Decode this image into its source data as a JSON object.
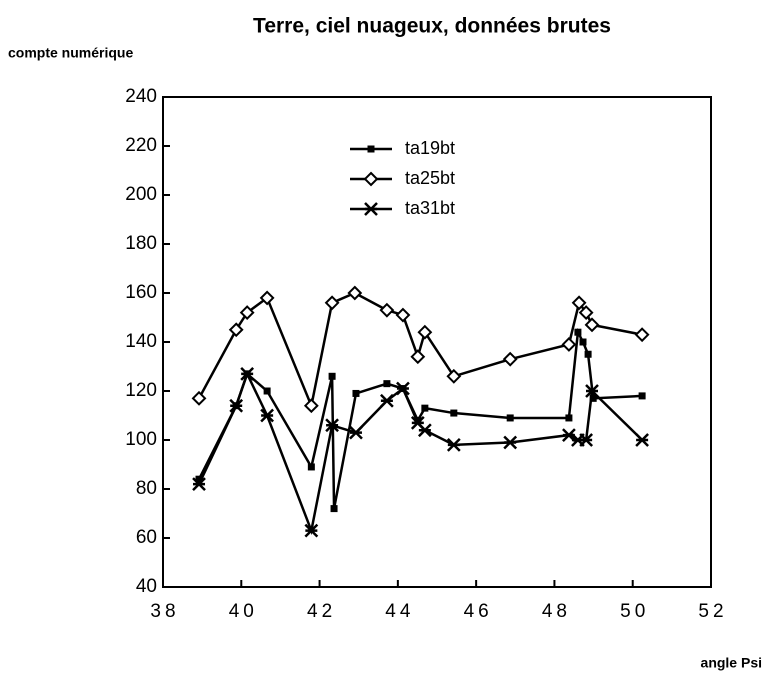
{
  "chart_data": {
    "type": "line",
    "title": "Terre, ciel nuageux, données brutes",
    "y_label": "compte numérique",
    "x_label": "angle Psi",
    "xlim": [
      38,
      52
    ],
    "xticks": [
      38,
      40,
      42,
      44,
      46,
      48,
      50,
      52
    ],
    "ylim": [
      40,
      240
    ],
    "yticks": [
      40,
      60,
      80,
      100,
      120,
      140,
      160,
      180,
      200,
      220,
      240
    ],
    "series": [
      {
        "name": "ta19bt",
        "marker": "square",
        "color": "#000000",
        "x": [
          38.92,
          39.87,
          40.15,
          40.66,
          41.79,
          42.32,
          42.37,
          42.93,
          43.72,
          44.13,
          44.51,
          44.69,
          45.43,
          46.87,
          48.37,
          48.6,
          48.73,
          48.86,
          48.99,
          50.24
        ],
        "values": [
          84,
          114,
          127,
          120,
          89,
          126,
          72,
          119,
          123,
          121,
          108,
          113,
          111,
          109,
          109,
          144,
          140,
          135,
          117,
          118
        ]
      },
      {
        "name": "ta25bt",
        "marker": "diamond",
        "color": "#000000",
        "x": [
          38.92,
          39.87,
          40.15,
          40.66,
          41.79,
          42.32,
          42.9,
          43.72,
          44.13,
          44.51,
          44.69,
          45.43,
          46.87,
          48.37,
          48.63,
          48.81,
          48.96,
          50.24
        ],
        "values": [
          117,
          145,
          152,
          158,
          114,
          156,
          160,
          153,
          151,
          134,
          144,
          126,
          133,
          139,
          156,
          152,
          147,
          143
        ]
      },
      {
        "name": "ta31bt",
        "marker": "star",
        "color": "#000000",
        "x": [
          38.92,
          39.87,
          40.15,
          40.66,
          41.79,
          42.32,
          42.93,
          43.72,
          44.13,
          44.51,
          44.69,
          45.43,
          46.87,
          48.37,
          48.6,
          48.81,
          48.96,
          50.24
        ],
        "values": [
          82,
          114,
          127,
          110,
          63,
          106,
          103,
          116,
          121,
          107,
          104,
          98,
          99,
          102,
          100,
          100,
          120,
          100
        ]
      }
    ]
  }
}
